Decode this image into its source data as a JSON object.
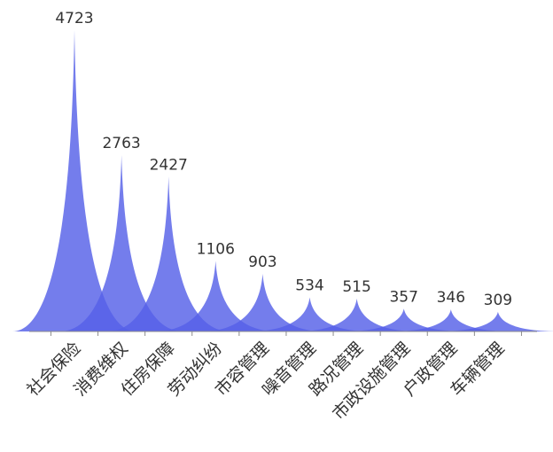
{
  "chart_data": {
    "type": "bar",
    "style": "pictorial-peak",
    "categories": [
      "社会保险",
      "消费维权",
      "住房保障",
      "劳动纠纷",
      "市容管理",
      "噪音管理",
      "路况管理",
      "市政设施管理",
      "户政管理",
      "车辆管理"
    ],
    "values": [
      4723,
      2763,
      2427,
      1106,
      903,
      534,
      515,
      357,
      346,
      309
    ],
    "title": "",
    "xlabel": "",
    "ylabel": "",
    "ylim": [
      0,
      4723
    ],
    "data_labels": true,
    "grid": false,
    "legend": "none",
    "colors": {
      "fill": "#5560e8",
      "axis": "#8c8c8c",
      "text": "#333333"
    }
  }
}
